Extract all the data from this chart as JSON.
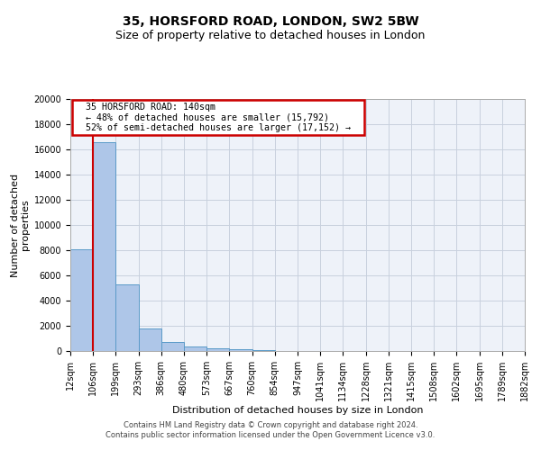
{
  "title": "35, HORSFORD ROAD, LONDON, SW2 5BW",
  "subtitle": "Size of property relative to detached houses in London",
  "xlabel": "Distribution of detached houses by size in London",
  "ylabel": "Number of detached\nproperties",
  "bin_labels": [
    "12sqm",
    "106sqm",
    "199sqm",
    "293sqm",
    "386sqm",
    "480sqm",
    "573sqm",
    "667sqm",
    "760sqm",
    "854sqm",
    "947sqm",
    "1041sqm",
    "1134sqm",
    "1228sqm",
    "1321sqm",
    "1415sqm",
    "1508sqm",
    "1602sqm",
    "1695sqm",
    "1789sqm",
    "1882sqm"
  ],
  "bar_values": [
    8100,
    16600,
    5300,
    1800,
    700,
    350,
    200,
    150,
    100,
    0,
    0,
    0,
    0,
    0,
    0,
    0,
    0,
    0,
    0,
    0
  ],
  "ylim": [
    0,
    20000
  ],
  "yticks": [
    0,
    2000,
    4000,
    6000,
    8000,
    10000,
    12000,
    14000,
    16000,
    18000,
    20000
  ],
  "bar_color": "#aec6e8",
  "bar_edgecolor": "#5a9ac8",
  "bg_color": "#eef2f9",
  "grid_color": "#c8d0de",
  "red_line_x": 1,
  "annotation_title": "35 HORSFORD ROAD: 140sqm",
  "annotation_line1": "← 48% of detached houses are smaller (15,792)",
  "annotation_line2": "52% of semi-detached houses are larger (17,152) →",
  "annotation_box_facecolor": "#ffffff",
  "annotation_box_edgecolor": "#cc0000",
  "red_line_color": "#cc0000",
  "footer_line1": "Contains HM Land Registry data © Crown copyright and database right 2024.",
  "footer_line2": "Contains public sector information licensed under the Open Government Licence v3.0.",
  "title_fontsize": 10,
  "subtitle_fontsize": 9,
  "tick_fontsize": 7,
  "ylabel_fontsize": 8,
  "xlabel_fontsize": 8,
  "footer_fontsize": 6
}
